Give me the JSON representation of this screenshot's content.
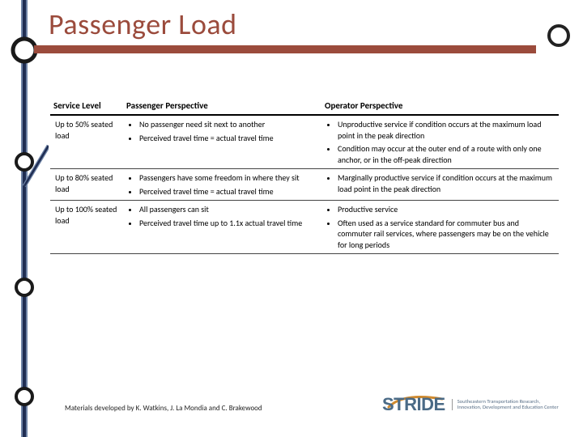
{
  "title": {
    "text": "Passenger Load",
    "color": "#9b4b3c"
  },
  "lines": {
    "rail_colors": {
      "outer": "#6f84a6",
      "inner": "#1f2d52"
    },
    "underline_color": "#9b4b3c",
    "diag_color": "#9b4b3c",
    "ring_border": "#1a1a1a"
  },
  "table": {
    "headers": [
      "Service Level",
      "Passenger Perspective",
      "Operator Perspective"
    ],
    "rows": [
      {
        "level": "Up to 50% seated load",
        "passenger": [
          "No passenger need sit next to another",
          "Perceived travel time = actual travel time"
        ],
        "operator": [
          "Unproductive service if condition occurs at the maximum load point in the peak direction",
          "Condition may occur at the outer end of a route with only one anchor, or in the off-peak direction"
        ]
      },
      {
        "level": "Up to 80% seated load",
        "passenger": [
          "Passengers have some freedom in where they sit",
          "Perceived travel time = actual travel time"
        ],
        "operator": [
          "Marginally productive service if condition occurs at the maximum load point in the peak direction"
        ]
      },
      {
        "level": "Up to 100% seated load",
        "passenger": [
          "All passengers can sit",
          "Perceived travel time up to 1.1x actual travel time"
        ],
        "operator": [
          "Productive service",
          "Often used as a service standard for commuter bus and commuter rail services, where passengers may be on the vehicle for long periods"
        ]
      }
    ]
  },
  "footer": "Materials developed by K. Watkins, J. La Mondia and C. Brakewood",
  "logo": {
    "mark": "STRIDE",
    "mark_color": "#4a6a86",
    "swoosh_color": "#d08a2e",
    "subtitle_l1": "Southeastern Transportation Research,",
    "subtitle_l2": "Innovation, Development and Education Center"
  }
}
